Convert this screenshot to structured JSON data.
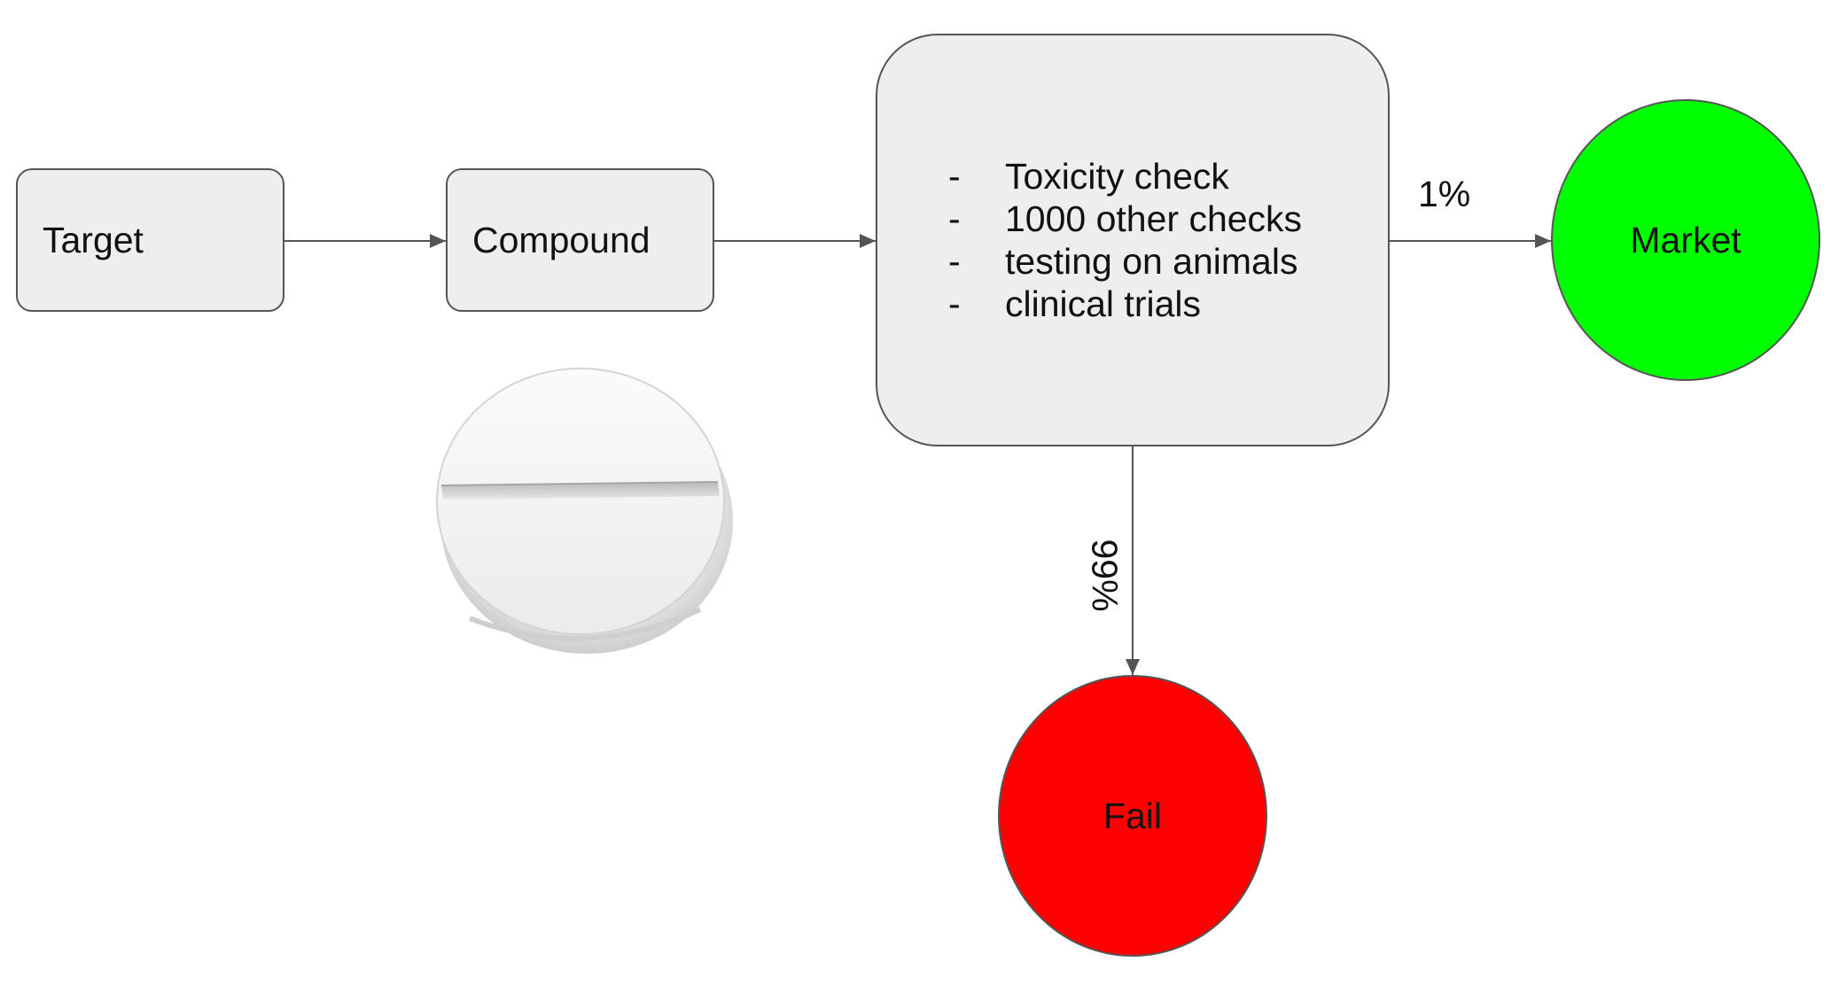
{
  "nodes": {
    "target": {
      "label": "Target"
    },
    "compound": {
      "label": "Compound"
    },
    "checks": {
      "bullet": "-",
      "items": [
        "Toxicity check",
        "1000 other checks",
        "testing on animals",
        "clinical trials"
      ]
    },
    "market": {
      "label": "Market"
    },
    "fail": {
      "label": "Fail"
    }
  },
  "edges": {
    "success_rate": "1%",
    "failure_rate": "99%"
  },
  "colors": {
    "box_fill": "#eeeeee",
    "box_border": "#555555",
    "market_fill": "#00ff00",
    "fail_fill": "#ff0000",
    "arrow": "#555555"
  },
  "icons": {
    "pill": "pill-image"
  }
}
